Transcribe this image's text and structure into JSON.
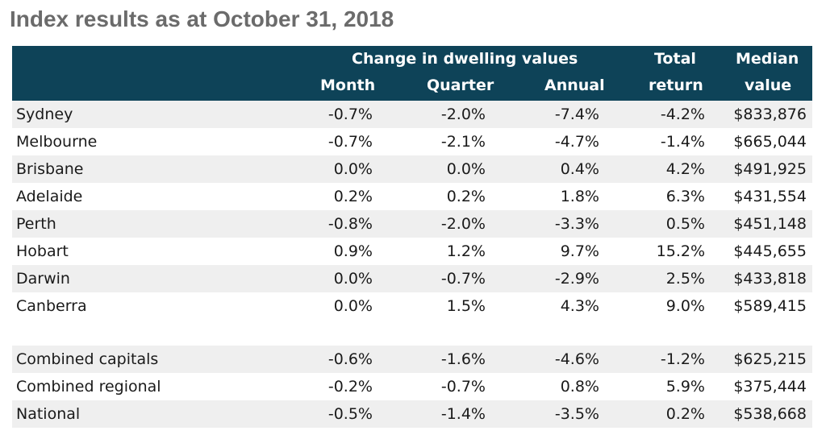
{
  "title": "Index results as at October 31, 2018",
  "header": {
    "group_label": "Change in dwelling values",
    "month": "Month",
    "quarter": "Quarter",
    "annual": "Annual",
    "total_line1": "Total",
    "total_line2": "return",
    "median_line1": "Median",
    "median_line2": "value"
  },
  "rows": [
    {
      "name": "Sydney",
      "month": "-0.7%",
      "quarter": "-2.0%",
      "annual": "-7.4%",
      "total": "-4.2%",
      "median": "$833,876"
    },
    {
      "name": "Melbourne",
      "month": "-0.7%",
      "quarter": "-2.1%",
      "annual": "-4.7%",
      "total": "-1.4%",
      "median": "$665,044"
    },
    {
      "name": "Brisbane",
      "month": "0.0%",
      "quarter": "0.0%",
      "annual": "0.4%",
      "total": "4.2%",
      "median": "$491,925"
    },
    {
      "name": "Adelaide",
      "month": "0.2%",
      "quarter": "0.2%",
      "annual": "1.8%",
      "total": "6.3%",
      "median": "$431,554"
    },
    {
      "name": "Perth",
      "month": "-0.8%",
      "quarter": "-2.0%",
      "annual": "-3.3%",
      "total": "0.5%",
      "median": "$451,148"
    },
    {
      "name": "Hobart",
      "month": "0.9%",
      "quarter": "1.2%",
      "annual": "9.7%",
      "total": "15.2%",
      "median": "$445,655"
    },
    {
      "name": "Darwin",
      "month": "0.0%",
      "quarter": "-0.7%",
      "annual": "-2.9%",
      "total": "2.5%",
      "median": "$433,818"
    },
    {
      "name": "Canberra",
      "month": "0.0%",
      "quarter": "1.5%",
      "annual": "4.3%",
      "total": "9.0%",
      "median": "$589,415"
    }
  ],
  "summary_rows": [
    {
      "name": "Combined capitals",
      "month": "-0.6%",
      "quarter": "-1.6%",
      "annual": "-4.6%",
      "total": "-1.2%",
      "median": "$625,215"
    },
    {
      "name": "Combined regional",
      "month": "-0.2%",
      "quarter": "-0.7%",
      "annual": "0.8%",
      "total": "5.9%",
      "median": "$375,444"
    },
    {
      "name": "National",
      "month": "-0.5%",
      "quarter": "-1.4%",
      "annual": "-3.5%",
      "total": "0.2%",
      "median": "$538,668"
    }
  ],
  "colors": {
    "header_bg": "#0e4358",
    "shade": "#efefef",
    "title": "#6b6b6b"
  }
}
